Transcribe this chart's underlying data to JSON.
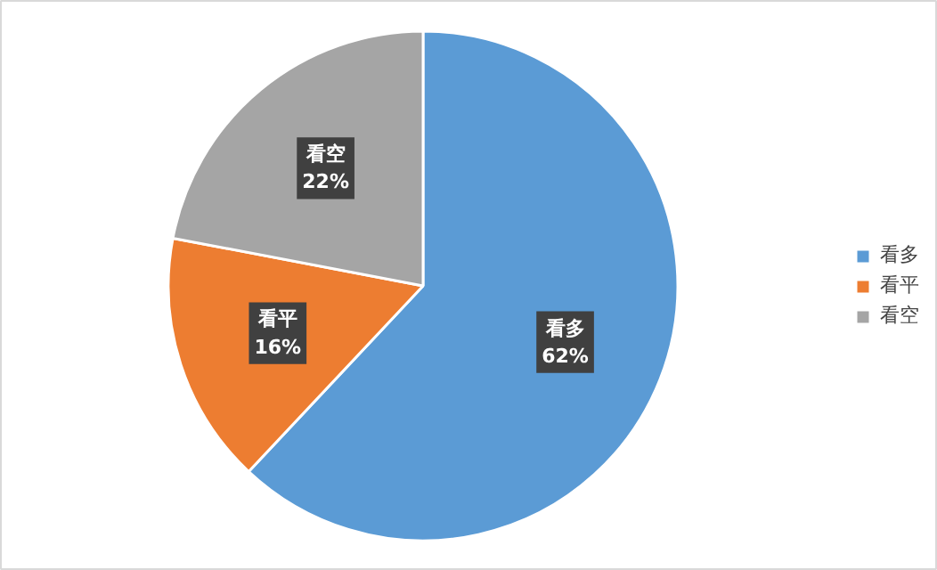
{
  "chart_data": {
    "type": "pie",
    "categories": [
      "看多",
      "看平",
      "看空"
    ],
    "values": [
      62,
      16,
      22
    ],
    "colors": [
      "#5b9bd5",
      "#ed7d31",
      "#a5a5a5"
    ],
    "value_labels": [
      "62%",
      "16%",
      "22%"
    ],
    "legend": "right"
  }
}
